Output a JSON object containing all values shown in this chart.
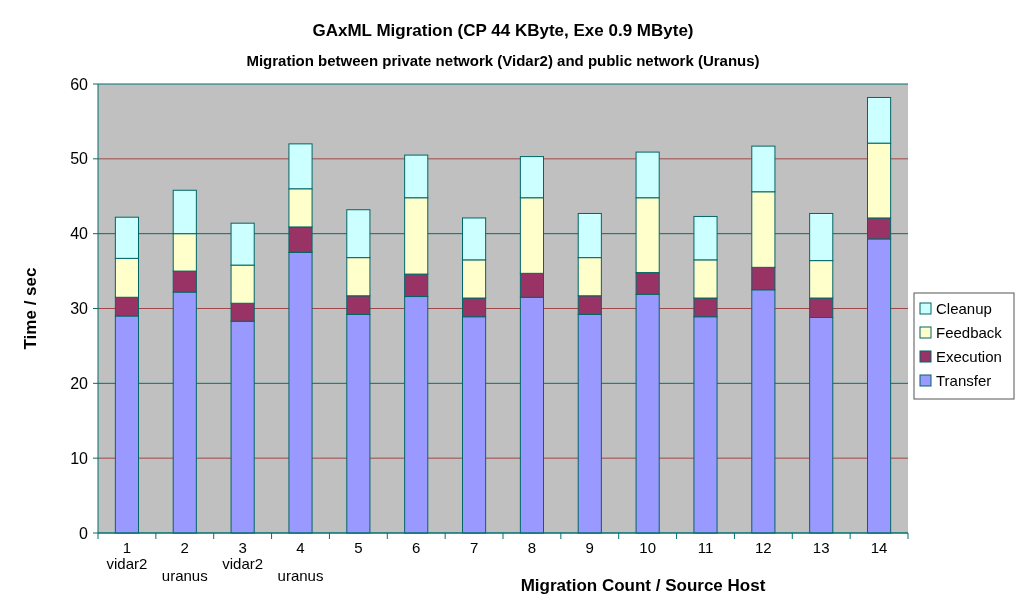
{
  "chart_data": {
    "type": "bar",
    "stacked": true,
    "title": "GAxML Migration (CP 44 KByte, Exe 0.9 MByte)",
    "subtitle": "Migration between private  network (Vidar2) and public network (Uranus)",
    "xlabel": "Migration Count / Source Host",
    "ylabel": "Time / sec",
    "categories": [
      "1\nvidar2",
      "2\nuranus",
      "3\nvidar2",
      "4\nuranus",
      "5",
      "6",
      "7",
      "8",
      "9",
      "10",
      "11",
      "12",
      "13",
      "14"
    ],
    "series": [
      {
        "name": "Transfer",
        "color": "#9999ff",
        "values": [
          29,
          32.2,
          28.3,
          37.5,
          29.2,
          31.6,
          28.9,
          31.5,
          29.2,
          31.9,
          28.9,
          32.5,
          28.8,
          39.3
        ]
      },
      {
        "name": "Execution",
        "color": "#993366",
        "values": [
          2.5,
          2.8,
          2.4,
          3.4,
          2.5,
          3,
          2.5,
          3.2,
          2.5,
          2.9,
          2.5,
          3,
          2.6,
          2.8
        ]
      },
      {
        "name": "Feedback",
        "color": "#ffffcc",
        "values": [
          5.2,
          5,
          5.1,
          5.1,
          5.1,
          10.2,
          5.1,
          10.1,
          5.1,
          10,
          5.1,
          10.1,
          5,
          10
        ]
      },
      {
        "name": "Cleanup",
        "color": "#ccffff",
        "values": [
          5.5,
          5.8,
          5.6,
          6,
          6.4,
          5.7,
          5.6,
          5.5,
          5.9,
          6.1,
          5.8,
          6.1,
          6.3,
          6.1
        ]
      }
    ],
    "ylim": [
      0,
      60
    ],
    "yticks": [
      0,
      10,
      20,
      30,
      40,
      50,
      60
    ],
    "grid": "y",
    "legend": "right"
  }
}
